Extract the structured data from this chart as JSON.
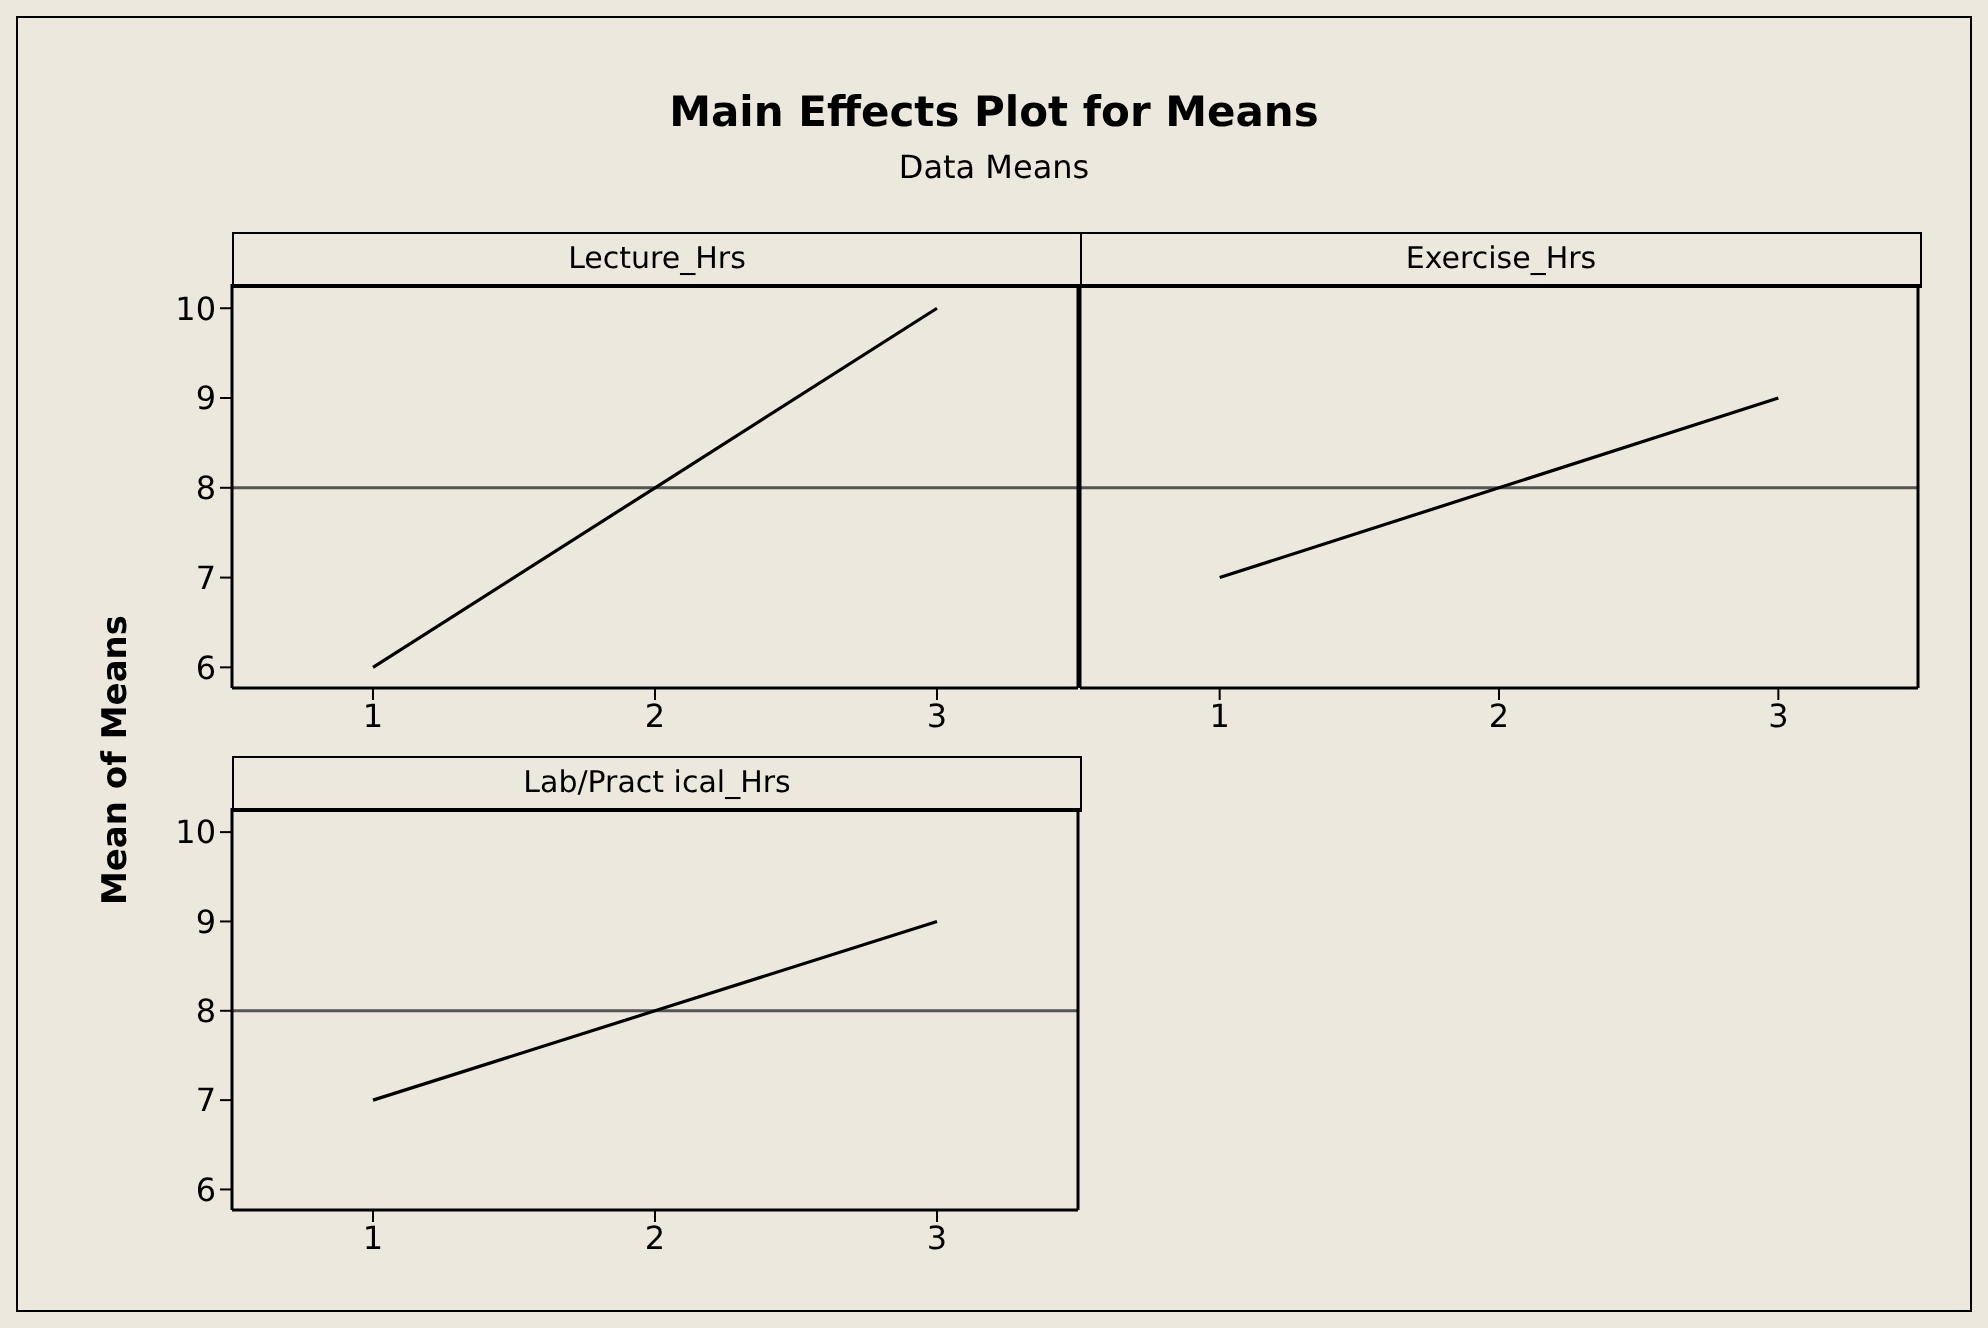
{
  "chart_data": [
    {
      "type": "line",
      "title": "Main Effects Plot for Means",
      "subtitle": "Data Means",
      "xlabel": "Lecture_Hrs",
      "ylabel": "Mean of Means",
      "x": [
        1,
        2,
        3
      ],
      "series": [
        {
          "color": "#000000",
          "values": [
            6,
            8,
            10
          ]
        }
      ],
      "xlim": [
        0.5,
        3.5
      ],
      "xticks": [
        1,
        2,
        3
      ],
      "ylim": [
        5.77,
        10.27
      ],
      "yticks": [
        6,
        7,
        8,
        9,
        10
      ],
      "ref_lines": [
        {
          "axis": "y",
          "value": 8,
          "color": "#555555"
        }
      ],
      "grid": false,
      "legend": false,
      "marker": "none"
    },
    {
      "type": "line",
      "xlabel": "Exercise_Hrs",
      "x": [
        1,
        2,
        3
      ],
      "series": [
        {
          "color": "#000000",
          "values": [
            7,
            8,
            9
          ]
        }
      ],
      "xlim": [
        0.5,
        3.5
      ],
      "xticks": [
        1,
        2,
        3
      ],
      "ylim": [
        5.77,
        10.27
      ],
      "yticks": [
        6,
        7,
        8,
        9,
        10
      ],
      "ref_lines": [
        {
          "axis": "y",
          "value": 8,
          "color": "#555555"
        }
      ],
      "tick_labels": "x",
      "grid": false,
      "legend": false,
      "marker": "none"
    },
    {
      "type": "line",
      "xlabel": "Lab/Pract ical_Hrs",
      "x": [
        1,
        2,
        3
      ],
      "series": [
        {
          "color": "#000000",
          "values": [
            7,
            8,
            9
          ]
        }
      ],
      "xlim": [
        0.5,
        3.5
      ],
      "xticks": [
        1,
        2,
        3
      ],
      "ylim": [
        5.77,
        10.27
      ],
      "yticks": [
        6,
        7,
        8,
        9,
        10
      ],
      "ref_lines": [
        {
          "axis": "y",
          "value": 8,
          "color": "#555555"
        }
      ],
      "grid": false,
      "legend": false,
      "marker": "none"
    }
  ]
}
